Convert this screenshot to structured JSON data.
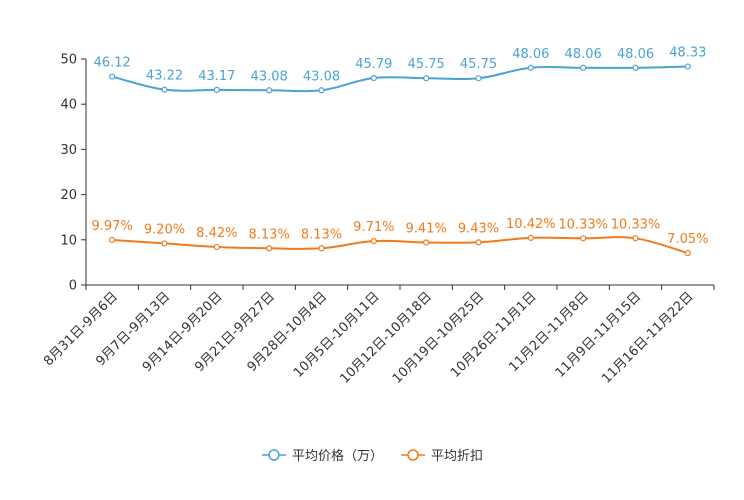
{
  "chart_data": {
    "type": "line",
    "title": "",
    "xlabel": "",
    "ylabel": "",
    "ylim": [
      0,
      50
    ],
    "yticks": [
      0,
      10,
      20,
      30,
      40,
      50
    ],
    "categories": [
      "8月31日-9月6日",
      "9月7日-9月13日",
      "9月14日-9月20日",
      "9月21日-9月27日",
      "9月28日-10月4日",
      "10月5日-10月11日",
      "10月12日-10月18日",
      "10月19日-10月25日",
      "10月26日-11月1日",
      "11月2日-11月8日",
      "11月9日-11月15日",
      "11月16日-11月22日"
    ],
    "series": [
      {
        "name": "平均价格（万）",
        "color": "#4aa3d4",
        "values": [
          46.12,
          43.22,
          43.17,
          43.08,
          43.08,
          45.79,
          45.75,
          45.75,
          48.06,
          48.06,
          48.06,
          48.33
        ],
        "labels": [
          "46.12",
          "43.22",
          "43.17",
          "43.08",
          "43.08",
          "45.79",
          "45.75",
          "45.75",
          "48.06",
          "48.06",
          "48.06",
          "48.33"
        ]
      },
      {
        "name": "平均折扣",
        "color": "#f07b1e",
        "values": [
          9.97,
          9.2,
          8.42,
          8.13,
          8.13,
          9.71,
          9.41,
          9.43,
          10.42,
          10.33,
          10.33,
          7.05
        ],
        "labels": [
          "9.97%",
          "9.20%",
          "8.42%",
          "8.13%",
          "8.13%",
          "9.71%",
          "9.41%",
          "9.43%",
          "10.42%",
          "10.33%",
          "10.33%",
          "7.05%"
        ]
      }
    ],
    "grid": false,
    "legend_position": "bottom-center"
  }
}
